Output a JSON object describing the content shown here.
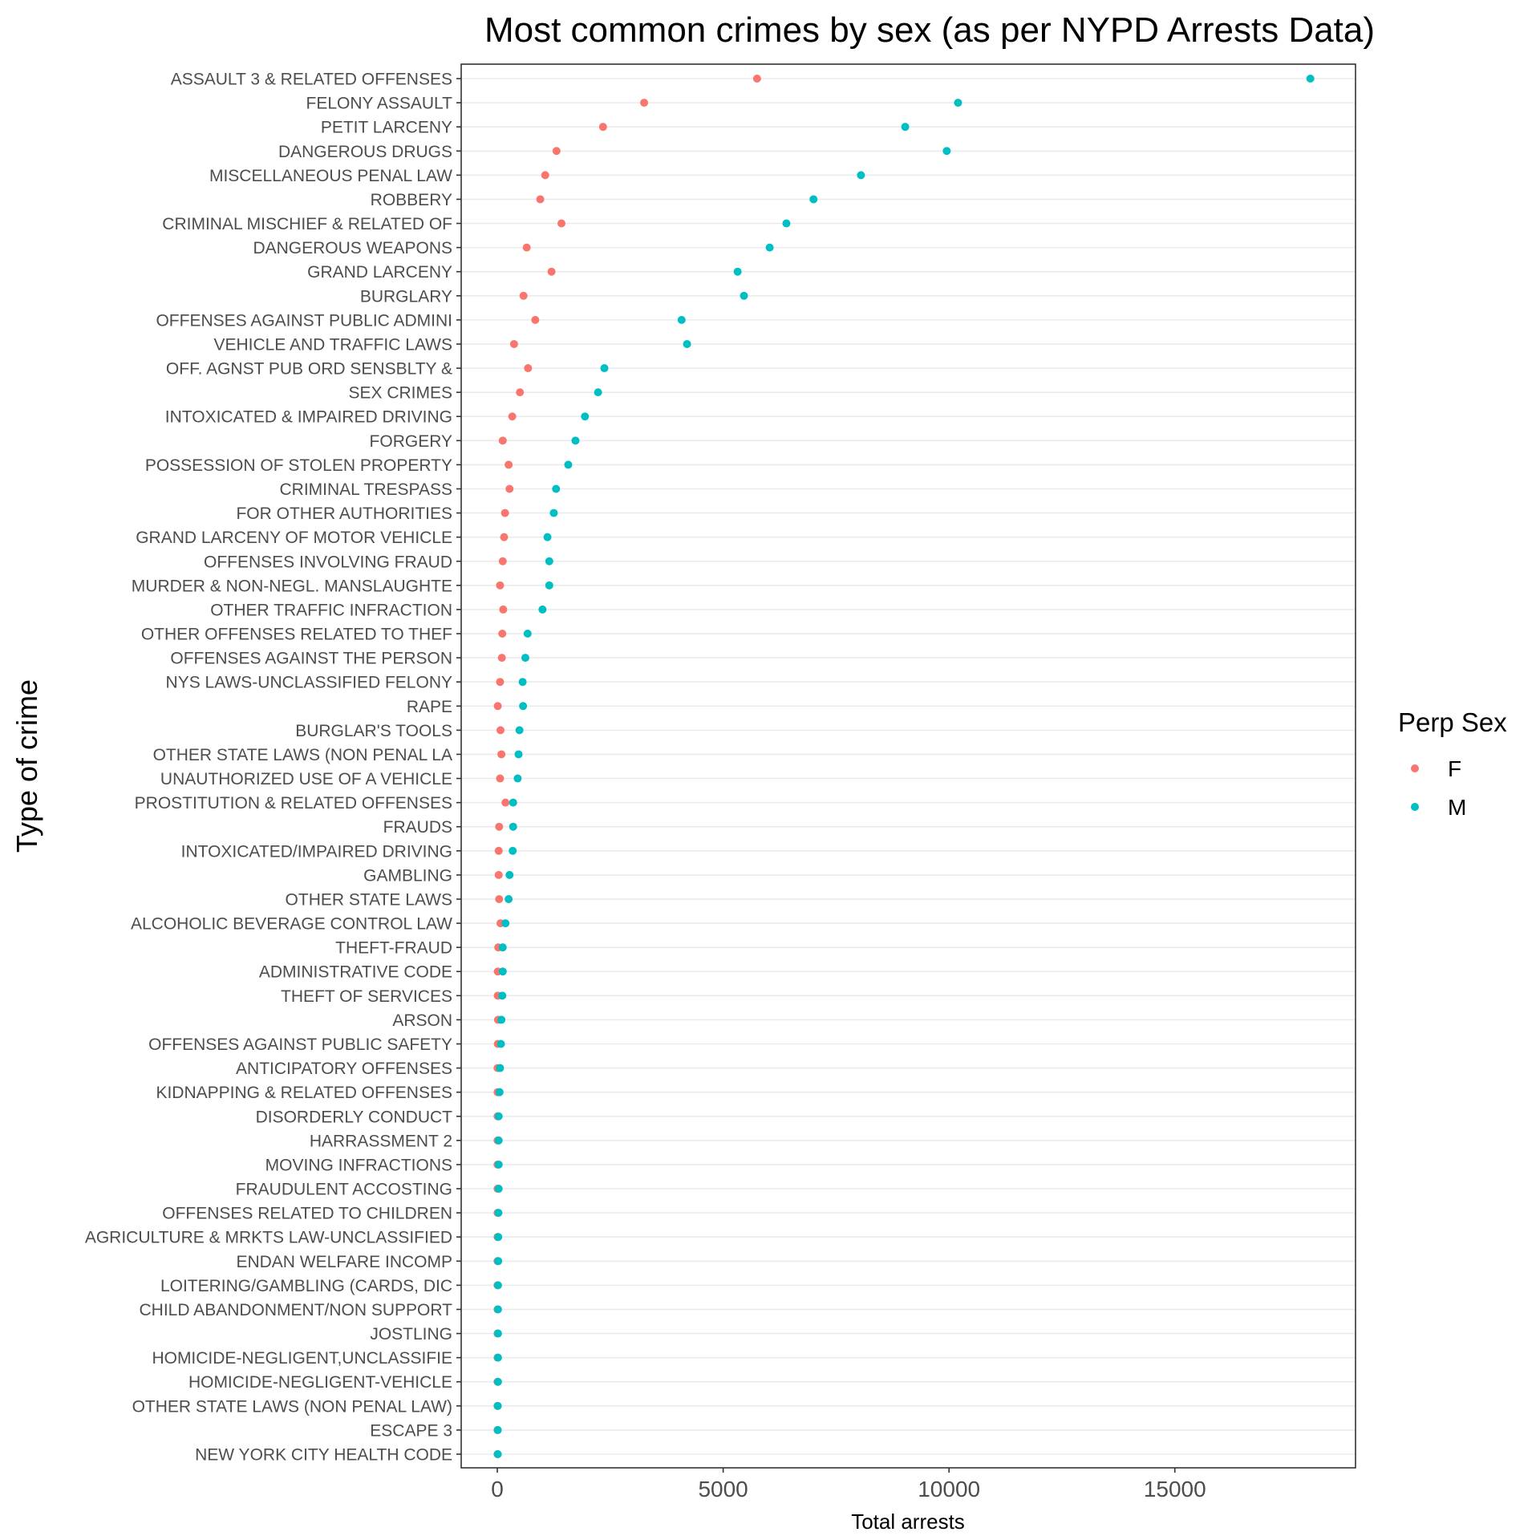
{
  "chart_data": {
    "type": "scatter",
    "title": "Most common crimes by sex (as per NYPD Arrests Data)",
    "xlabel": "Total arrests",
    "ylabel": "Type of crime",
    "xlim": [
      -800,
      19000
    ],
    "x_ticks": [
      0,
      5000,
      10000,
      15000
    ],
    "grid": "horizontal",
    "legend": {
      "title": "Perp Sex",
      "position": "right"
    },
    "categories": [
      "ASSAULT 3 & RELATED OFFENSES",
      "FELONY ASSAULT",
      "PETIT LARCENY",
      "DANGEROUS DRUGS",
      "MISCELLANEOUS PENAL LAW",
      "ROBBERY",
      "CRIMINAL MISCHIEF & RELATED OF",
      "DANGEROUS WEAPONS",
      "GRAND LARCENY",
      "BURGLARY",
      "OFFENSES AGAINST PUBLIC ADMINI",
      "VEHICLE AND TRAFFIC LAWS",
      "OFF. AGNST PUB ORD SENSBLTY &",
      "SEX CRIMES",
      "INTOXICATED & IMPAIRED DRIVING",
      "FORGERY",
      "POSSESSION OF STOLEN PROPERTY",
      "CRIMINAL TRESPASS",
      "FOR OTHER AUTHORITIES",
      "GRAND LARCENY OF MOTOR VEHICLE",
      "OFFENSES INVOLVING FRAUD",
      "MURDER & NON-NEGL. MANSLAUGHTE",
      "OTHER TRAFFIC INFRACTION",
      "OTHER OFFENSES RELATED TO THEF",
      "OFFENSES AGAINST THE PERSON",
      "NYS LAWS-UNCLASSIFIED FELONY",
      "RAPE",
      "BURGLAR'S TOOLS",
      "OTHER STATE LAWS (NON PENAL LA",
      "UNAUTHORIZED USE OF A VEHICLE",
      "PROSTITUTION & RELATED OFFENSES",
      "FRAUDS",
      "INTOXICATED/IMPAIRED DRIVING",
      "GAMBLING",
      "OTHER STATE LAWS",
      "ALCOHOLIC BEVERAGE CONTROL LAW",
      "THEFT-FRAUD",
      "ADMINISTRATIVE CODE",
      "THEFT OF SERVICES",
      "ARSON",
      "OFFENSES AGAINST PUBLIC SAFETY",
      "ANTICIPATORY OFFENSES",
      "KIDNAPPING & RELATED OFFENSES",
      "DISORDERLY CONDUCT",
      "HARRASSMENT 2",
      "MOVING INFRACTIONS",
      "FRAUDULENT ACCOSTING",
      "OFFENSES RELATED TO CHILDREN",
      "AGRICULTURE & MRKTS LAW-UNCLASSIFIED",
      "ENDAN WELFARE INCOMP",
      "LOITERING/GAMBLING (CARDS, DIC",
      "CHILD ABANDONMENT/NON SUPPORT",
      "JOSTLING",
      "HOMICIDE-NEGLIGENT,UNCLASSIFIE",
      "HOMICIDE-NEGLIGENT-VEHICLE",
      "OTHER STATE LAWS (NON PENAL LAW)",
      "ESCAPE 3",
      "NEW YORK CITY HEALTH CODE"
    ],
    "series": [
      {
        "name": "F",
        "color": "#F8766D",
        "values": [
          5750,
          3250,
          2340,
          1310,
          1060,
          950,
          1420,
          650,
          1200,
          580,
          840,
          370,
          680,
          500,
          330,
          120,
          250,
          270,
          170,
          150,
          120,
          60,
          130,
          110,
          100,
          60,
          10,
          70,
          90,
          60,
          180,
          40,
          30,
          30,
          40,
          70,
          20,
          10,
          10,
          15,
          10,
          5,
          5,
          5,
          5,
          5,
          5,
          5,
          5,
          5,
          5,
          5,
          5,
          5,
          5,
          5,
          5,
          5
        ]
      },
      {
        "name": "M",
        "color": "#00BFC4",
        "values": [
          18000,
          10200,
          9030,
          9950,
          8050,
          7000,
          6400,
          6030,
          5320,
          5460,
          4080,
          4200,
          2370,
          2230,
          1940,
          1730,
          1570,
          1300,
          1250,
          1110,
          1150,
          1150,
          1000,
          670,
          620,
          560,
          570,
          490,
          470,
          450,
          350,
          350,
          340,
          270,
          250,
          180,
          120,
          120,
          110,
          90,
          80,
          60,
          50,
          30,
          30,
          30,
          30,
          25,
          20,
          20,
          15,
          15,
          15,
          15,
          15,
          10,
          10,
          10
        ]
      }
    ]
  }
}
